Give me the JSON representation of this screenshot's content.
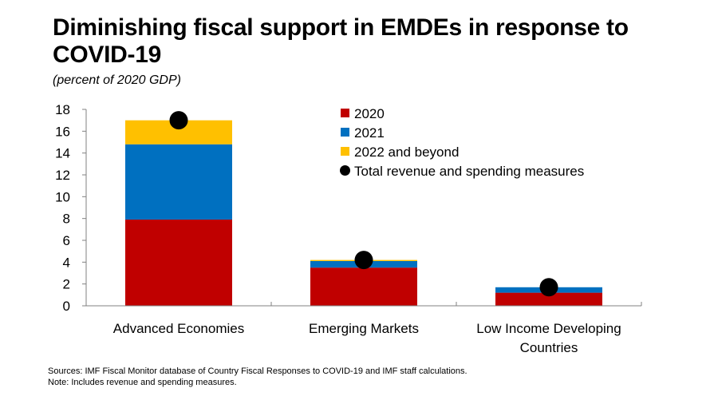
{
  "title": "Diminishing fiscal support in EMDEs in response to COVID-19",
  "subtitle": "(percent of 2020 GDP)",
  "sources": "Sources: IMF Fiscal Monitor database of Country Fiscal Responses to COVID-19 and IMF staff calculations.",
  "note": "Note: Includes revenue and spending measures.",
  "chart_data": {
    "type": "bar",
    "stacked": true,
    "title": "Diminishing fiscal support in EMDEs in response to COVID-19",
    "ylabel": "percent of 2020 GDP",
    "ylim": [
      0,
      18
    ],
    "yticks": [
      0,
      2,
      4,
      6,
      8,
      10,
      12,
      14,
      16,
      18
    ],
    "grid": false,
    "legend_position": "top-right",
    "categories": [
      [
        "Advanced Economies"
      ],
      [
        "Emerging Markets"
      ],
      [
        "Low Income Developing",
        "Countries"
      ]
    ],
    "series": [
      {
        "name": "2020",
        "color": "#C00000",
        "values": [
          7.9,
          3.5,
          1.2
        ]
      },
      {
        "name": "2021",
        "color": "#0070C0",
        "values": [
          6.9,
          0.6,
          0.5
        ]
      },
      {
        "name": "2022 and beyond",
        "color": "#FFC000",
        "values": [
          2.2,
          0.1,
          0.0
        ]
      }
    ],
    "markers": {
      "name": "Total revenue and spending measures",
      "color": "#000000",
      "values": [
        17.0,
        4.2,
        1.7
      ]
    }
  }
}
